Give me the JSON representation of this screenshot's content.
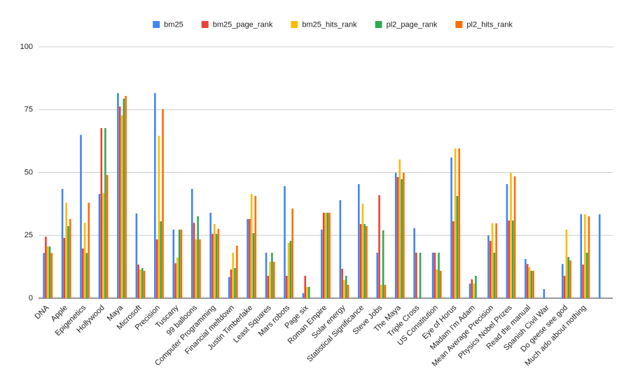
{
  "chart_data": {
    "type": "bar",
    "categories": [
      "DNA",
      "Apple",
      "Epigenetics",
      "Hollywood",
      "Maya",
      "Microsoft",
      "Precision",
      "Tuscany",
      "99 balloons",
      "Computer Programming",
      "Financial meltdown",
      "Justin Timberlake",
      "Least Squares",
      "Mars robots",
      "Page six",
      "Roman Empire",
      "Solar energy",
      "Statistical Significance",
      "Steve Jobs",
      "The Maya",
      "Triple Cross",
      "US Constitution",
      "Eye of Horus",
      "Madam I'm Adam",
      "Mean Average Precision",
      "Physics Nobel Prizes",
      "Read the manual",
      "Spanish Civil War",
      "Do geese see god",
      "Much ado about nothing",
      null
    ],
    "series": [
      {
        "name": "bm25",
        "color": "#4285f4",
        "values": [
          18,
          43.5,
          65,
          41.5,
          81.6,
          33.7,
          81.6,
          27.3,
          43.5,
          34,
          8.4,
          31.5,
          18.1,
          44.6,
          2,
          27.3,
          39,
          45.4,
          18.1,
          49.9,
          27.9,
          18.1,
          56,
          5.8,
          25,
          45.4,
          15.6,
          3.6,
          13.6,
          33.4,
          33.4
        ]
      },
      {
        "name": "bm25_page_rank",
        "color": "#ea4335",
        "values": [
          24.5,
          24,
          19.8,
          67.7,
          76.3,
          13.4,
          23.4,
          13.9,
          30,
          25.6,
          11.4,
          31.5,
          8.9,
          8.9,
          8.9,
          34,
          11.7,
          29.5,
          41,
          48.2,
          18.1,
          18.1,
          30.6,
          7.5,
          22.8,
          30.9,
          13.6,
          0,
          8.9,
          13.4,
          0
        ]
      },
      {
        "name": "bm25_hits_rank",
        "color": "#fbbc04",
        "values": [
          20.6,
          38,
          30,
          41.8,
          72.7,
          11.4,
          64.6,
          16.2,
          23.4,
          29.5,
          18.1,
          41.5,
          14.5,
          22,
          4.5,
          34,
          7.2,
          37.6,
          5.3,
          55.2,
          0,
          11.4,
          59.6,
          5.8,
          29.8,
          49.9,
          12.3,
          0,
          27.3,
          33.4,
          0
        ]
      },
      {
        "name": "pl2_page_rank",
        "color": "#34a853",
        "values": [
          20.6,
          28.7,
          18,
          67.7,
          79.4,
          12,
          30.6,
          27.3,
          32.6,
          25.6,
          12,
          25.9,
          18.1,
          22.8,
          4.5,
          34,
          8.9,
          29.5,
          27,
          47.4,
          18.1,
          18.1,
          40.7,
          8.9,
          18.1,
          30.9,
          10.9,
          0,
          16.4,
          18.1,
          0
        ]
      },
      {
        "name": "pl2_hits_rank",
        "color": "#ff6d01",
        "values": [
          18,
          31.5,
          38,
          49,
          80.5,
          10.9,
          75.2,
          27.3,
          23.4,
          27.6,
          20.9,
          40.7,
          14.5,
          35.7,
          0,
          34,
          5.3,
          28.7,
          5.3,
          49.9,
          0,
          10.9,
          59.6,
          0,
          29.8,
          48.5,
          10.9,
          0,
          15,
          32.6,
          0
        ]
      }
    ],
    "ylim": [
      0,
      100
    ],
    "yticks": [
      0,
      25,
      50,
      75,
      100
    ],
    "grid": true,
    "legend": "top"
  }
}
